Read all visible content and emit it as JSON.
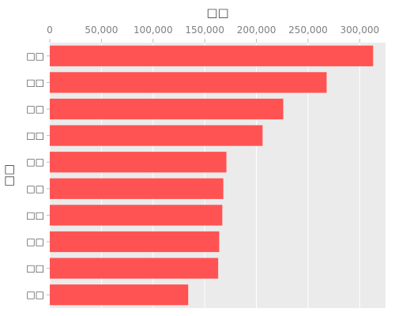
{
  "chart_data": {
    "type": "bar",
    "orientation": "horizontal",
    "title": "",
    "xlabel": "□□",
    "ylabel": "□□",
    "x_axis_position": "top",
    "xlim": [
      0,
      325000
    ],
    "xticks": [
      0,
      50000,
      100000,
      150000,
      200000,
      250000,
      300000
    ],
    "xtick_labels": [
      "0",
      "50,000",
      "100,000",
      "150,000",
      "200,000",
      "250,000",
      "300,000"
    ],
    "categories": [
      "□□",
      "□□",
      "□□",
      "□□",
      "□□",
      "□□",
      "□□",
      "□□",
      "□□",
      "□□"
    ],
    "values": [
      313000,
      268000,
      226000,
      206000,
      171000,
      168000,
      167000,
      164000,
      163000,
      134000
    ],
    "bar_color": "#ff5353",
    "plot_background": "#ebebeb",
    "grid": true,
    "grid_color": "#ffffff",
    "legend": "none"
  }
}
